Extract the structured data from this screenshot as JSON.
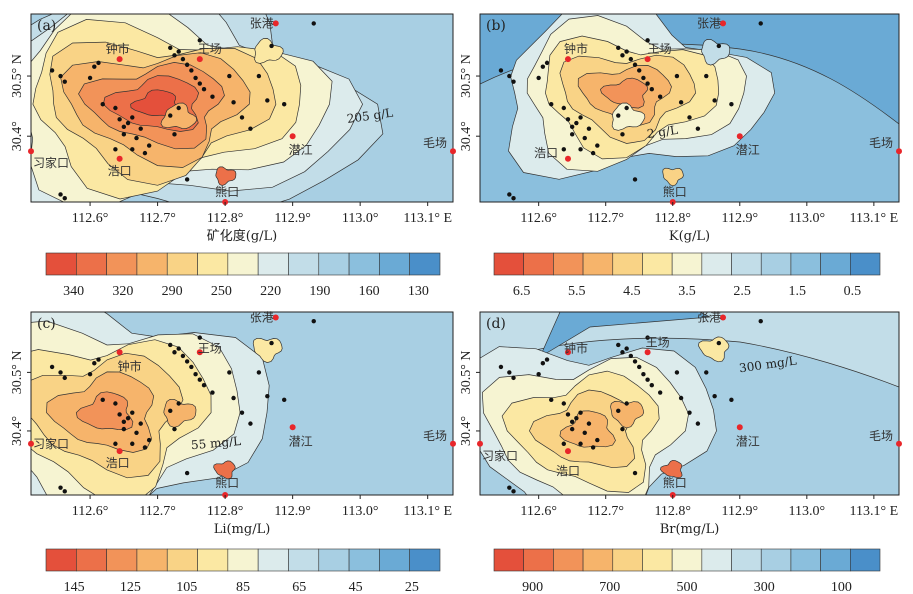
{
  "chart_data": [
    {
      "type": "contour-map",
      "panel": "(a)",
      "xlabel": "矿化度(g/L)",
      "x_ticks": [
        "112.6°",
        "112.7°",
        "112.8°",
        "112.9°",
        "113.0°",
        "113.1° E"
      ],
      "y_ticks": [
        "30.5° N",
        "30.4°"
      ],
      "contour_label": "205 g/L",
      "places": [
        "张港",
        "钟市",
        "王场",
        "潜江",
        "毛场",
        "习家口",
        "浩口",
        "熊口"
      ],
      "legend_ticks": [
        "340",
        "320",
        "290",
        "250",
        "220",
        "190",
        "160",
        "130"
      ],
      "palette": [
        "#e4503b",
        "#ec7049",
        "#f29359",
        "#f6b46b",
        "#f9d386",
        "#fbe8a3",
        "#f6f4d2",
        "#dcebec",
        "#c2dde8",
        "#a8cfe3",
        "#8bbfdd",
        "#6aaad5",
        "#4a8fc9"
      ]
    },
    {
      "type": "contour-map",
      "panel": "(b)",
      "xlabel": "K(g/L)",
      "x_ticks": [
        "112.6°",
        "112.7°",
        "112.8°",
        "112.9°",
        "113.0°",
        "113.1° E"
      ],
      "y_ticks": [
        "30.5° N",
        "30.4°"
      ],
      "contour_label": "2 g/L",
      "places": [
        "张港",
        "钟市",
        "王场",
        "潜江",
        "毛场",
        "浩口",
        "熊口"
      ],
      "legend_ticks": [
        "6.5",
        "5.5",
        "4.5",
        "3.5",
        "2.5",
        "1.5",
        "0.5"
      ],
      "palette": [
        "#e4503b",
        "#ec7049",
        "#f29359",
        "#f6b46b",
        "#f9d386",
        "#fbe8a3",
        "#f6f4d2",
        "#dcebec",
        "#c2dde8",
        "#a8cfe3",
        "#8bbfdd",
        "#6aaad5",
        "#4a8fc9"
      ]
    },
    {
      "type": "contour-map",
      "panel": "(c)",
      "xlabel": "Li(mg/L)",
      "x_ticks": [
        "112.6°",
        "112.7°",
        "112.8°",
        "112.9°",
        "113.0°",
        "113.1° E"
      ],
      "y_ticks": [
        "30.5° N",
        "30.4°"
      ],
      "contour_label": "55 mg/L",
      "places": [
        "张港",
        "钟市",
        "王场",
        "潜江",
        "毛场",
        "习家口",
        "浩口",
        "熊口"
      ],
      "legend_ticks": [
        "145",
        "125",
        "105",
        "85",
        "65",
        "45",
        "25"
      ],
      "palette": [
        "#e4503b",
        "#ec7049",
        "#f29359",
        "#f6b46b",
        "#f9d386",
        "#fbe8a3",
        "#f6f4d2",
        "#dcebec",
        "#c2dde8",
        "#a8cfe3",
        "#8bbfdd",
        "#6aaad5",
        "#4a8fc9"
      ]
    },
    {
      "type": "contour-map",
      "panel": "(d)",
      "xlabel": "Br(mg/L)",
      "x_ticks": [
        "112.6°",
        "112.7°",
        "112.8°",
        "112.9°",
        "113.0°",
        "113.1° E"
      ],
      "y_ticks": [
        "30.5° N",
        "30.4°"
      ],
      "contour_label": "300 mg/L",
      "places": [
        "张港",
        "钟市",
        "王场",
        "潜江",
        "毛场",
        "习家口",
        "浩口",
        "熊口"
      ],
      "legend_ticks": [
        "900",
        "700",
        "500",
        "300",
        "100"
      ],
      "palette": [
        "#e4503b",
        "#ec7049",
        "#f29359",
        "#f6b46b",
        "#f9d386",
        "#fbe8a3",
        "#f6f4d2",
        "#dcebec",
        "#c2dde8",
        "#a8cfe3",
        "#8bbfdd",
        "#6aaad5",
        "#4a8fc9"
      ]
    }
  ]
}
